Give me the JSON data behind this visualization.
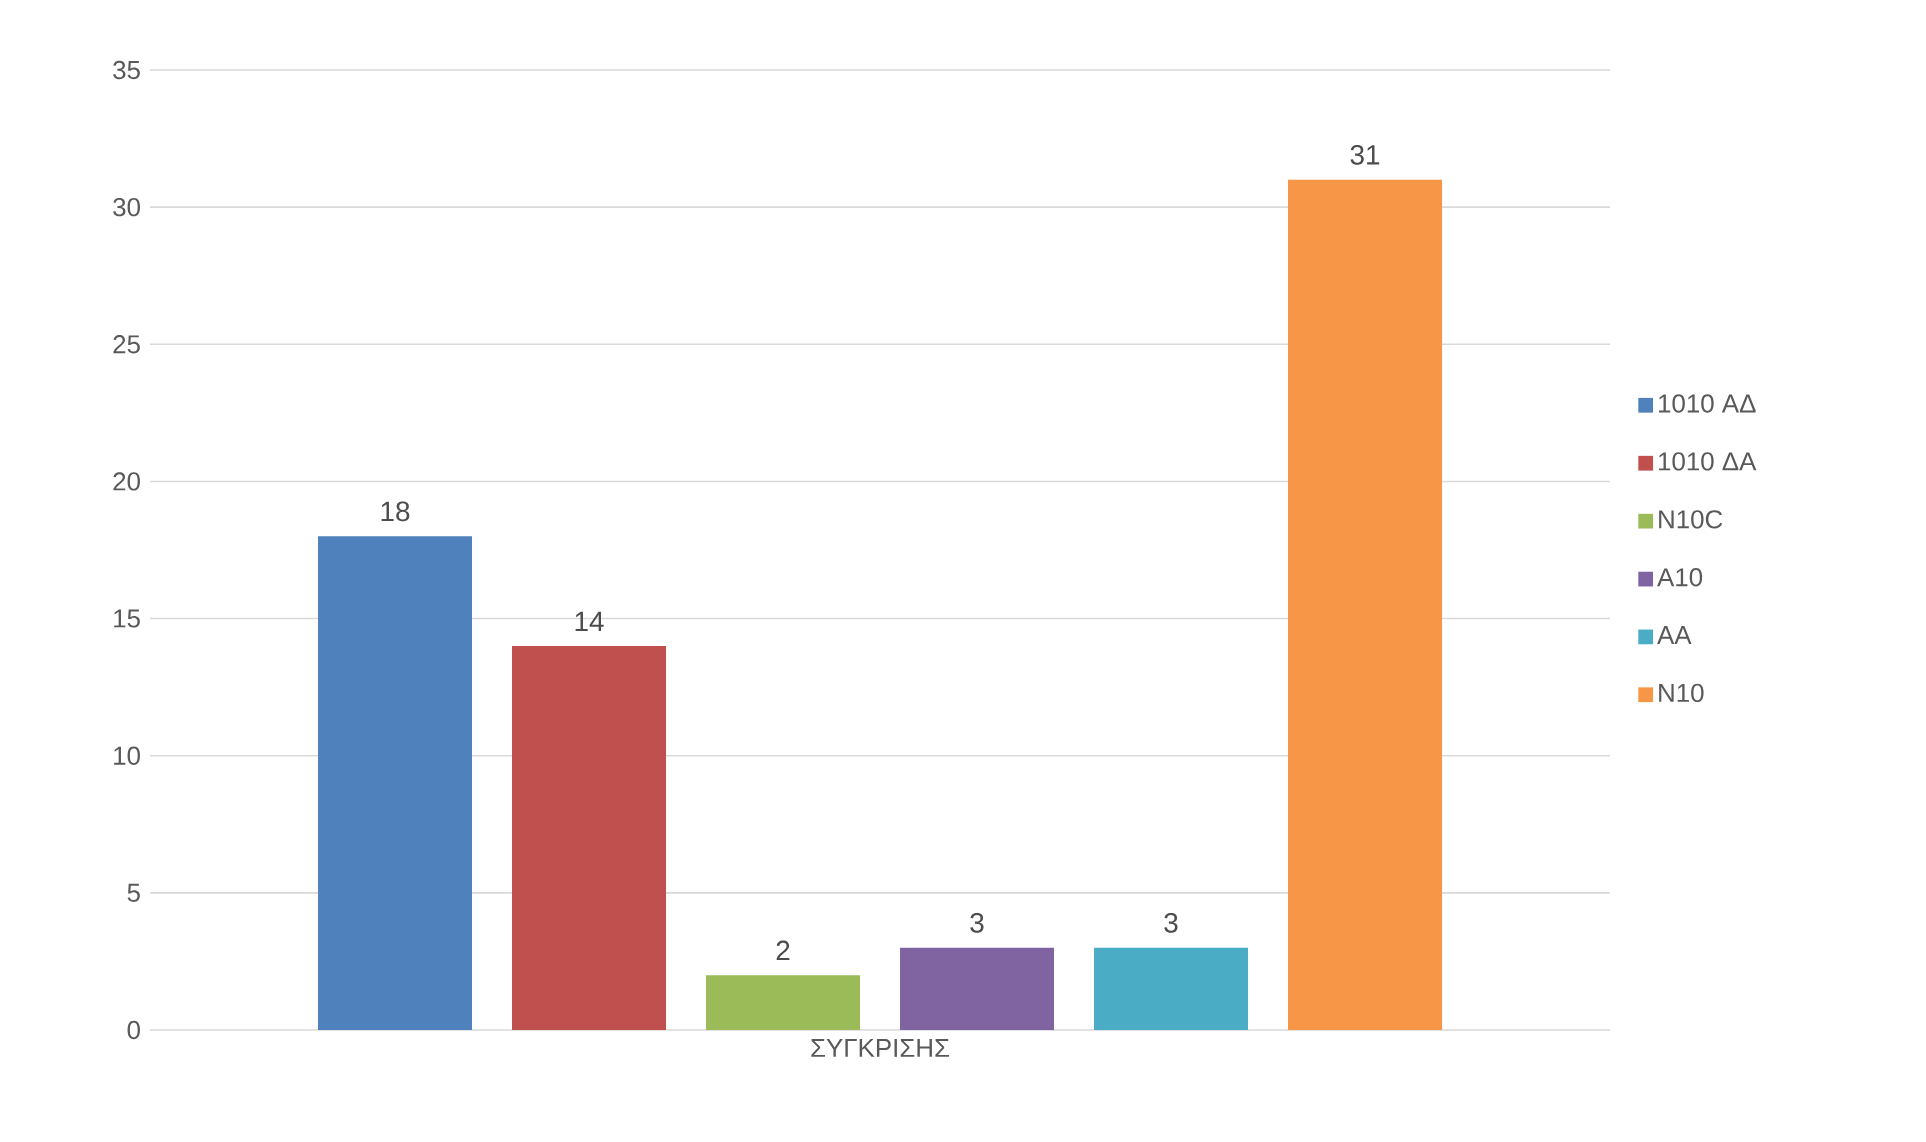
{
  "chart_data": {
    "type": "bar",
    "categories": [
      "ΣΥΓΚΡΙΣΗΣ"
    ],
    "series": [
      {
        "name": "1010 ΑΔ",
        "color": "#4f81bd",
        "values": [
          18
        ]
      },
      {
        "name": "1010 ΔΑ",
        "color": "#c0504d",
        "values": [
          14
        ]
      },
      {
        "name": "N10C",
        "color": "#9bbb59",
        "values": [
          2
        ]
      },
      {
        "name": "A10",
        "color": "#8064a2",
        "values": [
          3
        ]
      },
      {
        "name": "AA",
        "color": "#4bacc6",
        "values": [
          3
        ]
      },
      {
        "name": "N10",
        "color": "#f79646",
        "values": [
          31
        ]
      }
    ],
    "ylim": [
      0,
      35
    ],
    "yticks": [
      0,
      5,
      10,
      15,
      20,
      25,
      30,
      35
    ],
    "grid": "y",
    "legend": "right",
    "data_labels": true
  }
}
